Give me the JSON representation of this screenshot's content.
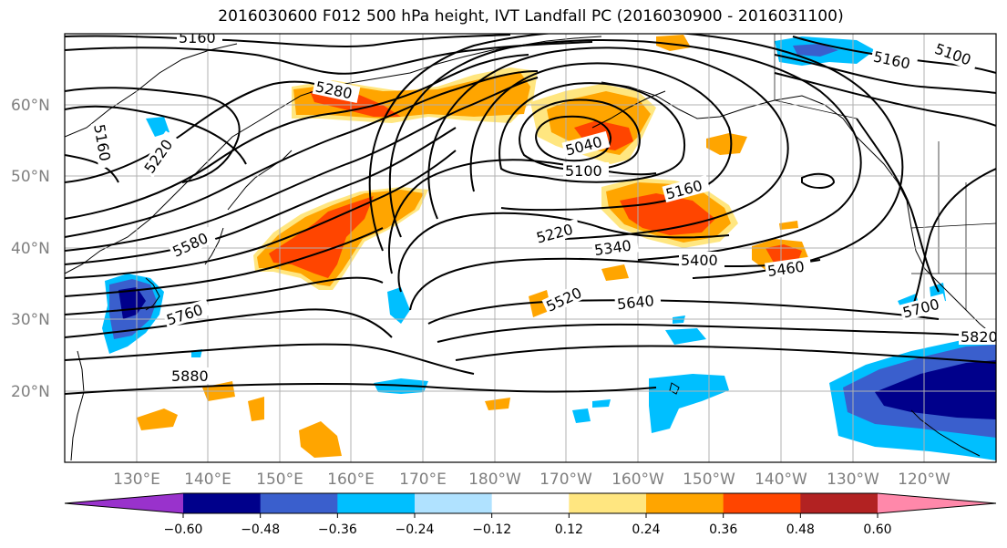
{
  "title": "2016030600 F012 500 hPa height, IVT Landfall PC (2016030900 - 2016031100)",
  "lat_labels": [
    "60°N",
    "50°N",
    "40°N",
    "30°N",
    "20°N"
  ],
  "lon_labels": [
    "130°E",
    "140°E",
    "150°E",
    "160°E",
    "170°E",
    "180°W",
    "170°W",
    "160°W",
    "150°W",
    "140°W",
    "130°W",
    "120°W"
  ],
  "contour_labels": [
    "5160",
    "5100",
    "5160",
    "5280",
    "5160",
    "5220",
    "5040",
    "5100",
    "5160",
    "5220",
    "5340",
    "5400",
    "5460",
    "5580",
    "5760",
    "5520",
    "5640",
    "5700",
    "5820",
    "5880"
  ],
  "colorbar": {
    "ticks": [
      "−0.60",
      "−0.48",
      "−0.36",
      "−0.24",
      "−0.12",
      "0.12",
      "0.24",
      "0.36",
      "0.48",
      "0.60"
    ],
    "colors": [
      "#9932cc",
      "#00008b",
      "#3a5fcd",
      "#00bfff",
      "#b0e2ff",
      "#ffffff",
      "#ffe680",
      "#ffa500",
      "#ff4500",
      "#b22222",
      "#ff88aa"
    ]
  },
  "palette": {
    "neg_strong": "#00008b",
    "neg_mid": "#3a5fcd",
    "neg_light": "#00bfff",
    "pos_light": "#ffe680",
    "pos_mid": "#ffa500",
    "pos_strong": "#ff4500"
  }
}
